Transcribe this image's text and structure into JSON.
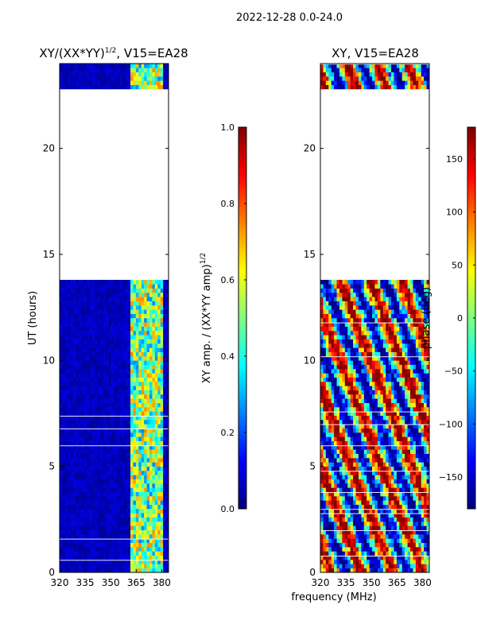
{
  "figure_title": "2022-12-28 0.0-24.0",
  "xlabel_shared": "frequency (MHz)",
  "colors": {
    "nodata": "#000080",
    "frame": "#000000"
  },
  "chart_data": [
    {
      "type": "heatmap",
      "title": "XY/(XX*YY)",
      "title_exponent": "1/2",
      "title_suffix": ", V15=EA28",
      "xlabel": "",
      "ylabel": "UT (hours)",
      "xlim": [
        320,
        384
      ],
      "ylim": [
        0,
        24
      ],
      "xticks": [
        "320",
        "335",
        "350",
        "365",
        "380"
      ],
      "xtick_values": [
        320,
        335,
        350,
        365,
        380
      ],
      "yticks": [
        "0",
        "5",
        "10",
        "15",
        "20"
      ],
      "ytick_values": [
        0,
        5,
        10,
        15,
        20
      ],
      "data_gap_hours": [
        13.8,
        22.8
      ],
      "data_rows_hours": [
        [
          0,
          13.8
        ],
        [
          22.8,
          24
        ]
      ],
      "colorbar": {
        "label": "XY amp. / (XX*YY amp)",
        "label_exponent": "1/2",
        "range": [
          0.0,
          1.0
        ],
        "ticks": [
          "0.0",
          "0.2",
          "0.4",
          "0.6",
          "0.8",
          "1.0"
        ],
        "tick_values": [
          0.0,
          0.2,
          0.4,
          0.6,
          0.8,
          1.0
        ]
      }
    },
    {
      "type": "heatmap",
      "title": "XY, V15=EA28",
      "xlabel": "",
      "ylabel": "phase (deg)",
      "xlim": [
        320,
        384
      ],
      "ylim": [
        0,
        24
      ],
      "xticks": [
        "320",
        "335",
        "350",
        "365",
        "380"
      ],
      "xtick_values": [
        320,
        335,
        350,
        365,
        380
      ],
      "yticks": [
        "0",
        "5",
        "10",
        "15",
        "20"
      ],
      "ytick_values": [
        0,
        5,
        10,
        15,
        20
      ],
      "data_gap_hours": [
        13.8,
        22.8
      ],
      "colorbar": {
        "label": "",
        "range": [
          -180,
          180
        ],
        "ticks": [
          "−150",
          "−100",
          "−50",
          "0",
          "50",
          "100",
          "150"
        ],
        "tick_values": [
          -150,
          -100,
          -50,
          0,
          50,
          100,
          150
        ]
      }
    }
  ]
}
